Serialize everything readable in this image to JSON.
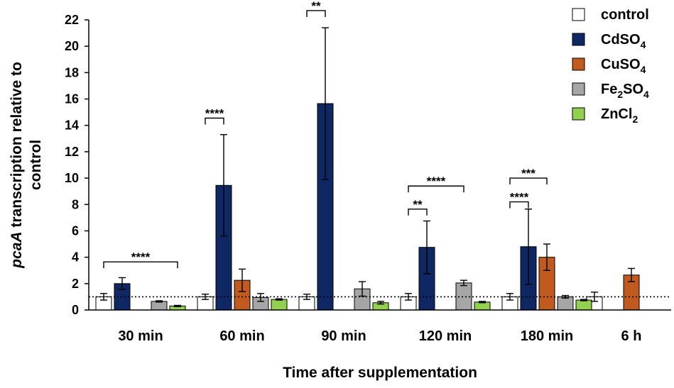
{
  "chart_data": {
    "type": "bar",
    "title": "",
    "xlabel": "Time after supplementation",
    "ylabel_italic": "pcaA",
    "ylabel_rest": " transcription relative to",
    "ylabel_line2": "control",
    "ylim": [
      0,
      22
    ],
    "yticks": [
      0,
      2,
      4,
      6,
      8,
      10,
      12,
      14,
      16,
      18,
      20,
      22
    ],
    "reference_line": 1,
    "categories": [
      "30 min",
      "60 min",
      "90 min",
      "120 min",
      "180 min",
      "6 h"
    ],
    "series": [
      {
        "name": "control",
        "label_main": "control",
        "label_sub": "",
        "label_tail": "",
        "color": "#ffffff",
        "values": [
          1.0,
          1.0,
          1.0,
          1.0,
          1.0,
          1.0
        ],
        "errors": [
          0.25,
          0.2,
          0.2,
          0.25,
          0.25,
          0.35
        ]
      },
      {
        "name": "CdSO4",
        "label_main": "CdSO",
        "label_sub": "4",
        "label_tail": "",
        "color": "#0f2762",
        "values": [
          2.0,
          9.45,
          15.65,
          4.75,
          4.8,
          null
        ],
        "errors": [
          0.45,
          3.85,
          5.75,
          2.0,
          2.85,
          null
        ]
      },
      {
        "name": "CuSO4",
        "label_main": "CuSO",
        "label_sub": "4",
        "label_tail": "",
        "color": "#c05a1e",
        "values": [
          null,
          2.25,
          null,
          null,
          4.0,
          2.65
        ],
        "errors": [
          null,
          0.85,
          null,
          null,
          1.0,
          0.5
        ]
      },
      {
        "name": "Fe2SO4",
        "label_main": "Fe",
        "label_sub": "2",
        "label_tail": "SO4",
        "color": "#a6a6a6",
        "values": [
          0.65,
          0.95,
          1.6,
          2.05,
          1.0,
          null
        ],
        "errors": [
          0.05,
          0.3,
          0.55,
          0.2,
          0.1,
          null
        ]
      },
      {
        "name": "ZnCl2",
        "label_main": "ZnCl",
        "label_sub": "2",
        "label_tail": "",
        "color": "#92d050",
        "values": [
          0.3,
          0.8,
          0.55,
          0.6,
          0.75,
          null
        ],
        "errors": [
          0.05,
          0.05,
          0.1,
          0.05,
          0.05,
          null
        ]
      }
    ],
    "significance": [
      {
        "category": 0,
        "from_series": 0,
        "to_series": 4,
        "bracket_y": 3.65,
        "label": "****"
      },
      {
        "category": 1,
        "from_series": 0,
        "to_series": 1,
        "bracket_y": 14.55,
        "label": "****"
      },
      {
        "category": 2,
        "from_series": 0,
        "to_series": 1,
        "bracket_y": 22.7,
        "label": "**"
      },
      {
        "category": 3,
        "from_series": 0,
        "to_series": 1,
        "bracket_y": 7.65,
        "label": "**"
      },
      {
        "category": 3,
        "from_series": 0,
        "to_series": 3,
        "bracket_y": 9.4,
        "label": "****"
      },
      {
        "category": 4,
        "from_series": 0,
        "to_series": 1,
        "bracket_y": 8.2,
        "label": "****"
      },
      {
        "category": 4,
        "from_series": 0,
        "to_series": 2,
        "bracket_y": 10.0,
        "label": "***"
      }
    ],
    "legend_position": "top-right",
    "grid": false
  }
}
